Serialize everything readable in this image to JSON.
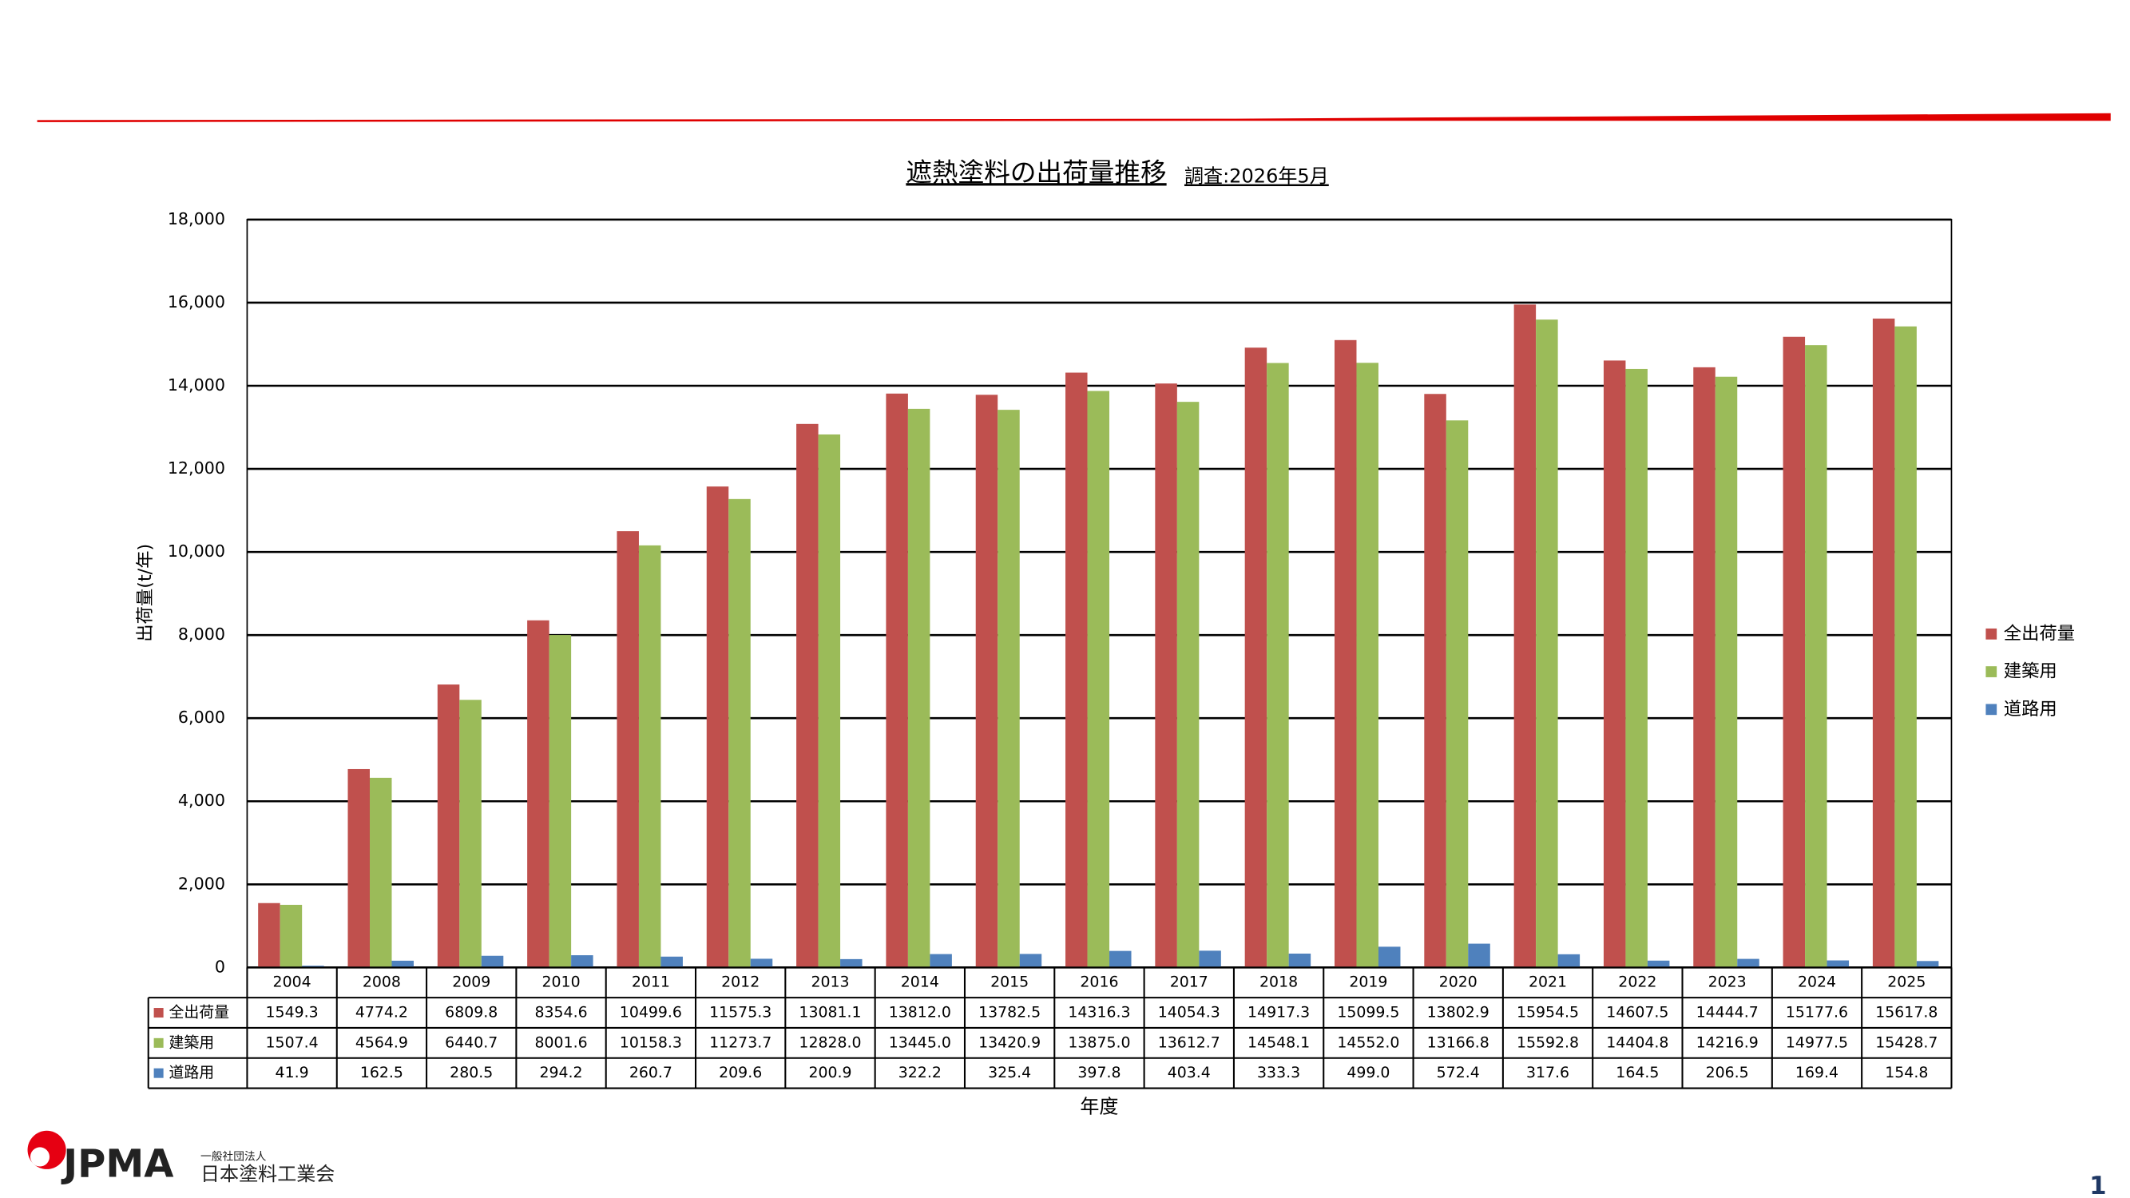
{
  "chart_data": {
    "type": "bar",
    "title": "遮熱塗料の出荷量推移",
    "subtitle": "調査:2026年5月",
    "y_label": "出荷量(t/年)",
    "x_label": "年度",
    "categories": [
      "2004",
      "2008",
      "2009",
      "2010",
      "2011",
      "2012",
      "2013",
      "2014",
      "2015",
      "2016",
      "2017",
      "2018",
      "2019",
      "2020",
      "2021",
      "2022",
      "2023",
      "2024",
      "2025"
    ],
    "series": [
      {
        "name": "全出荷量",
        "color": "#c0504d",
        "values": [
          1549.3,
          4774.2,
          6809.8,
          8354.6,
          10499.6,
          11575.3,
          13081.1,
          13812.0,
          13782.5,
          14316.3,
          14054.3,
          14917.3,
          15099.5,
          13802.9,
          15954.5,
          14607.5,
          14444.7,
          15177.6,
          15617.8
        ],
        "value_labels": [
          "1549.3",
          "4774.2",
          "6809.8",
          "8354.6",
          "10499.6",
          "11575.3",
          "13081.1",
          "13812.0",
          "13782.5",
          "14316.3",
          "14054.3",
          "14917.3",
          "15099.5",
          "13802.9",
          "15954.5",
          "14607.5",
          "14444.7",
          "15177.6",
          "15617.8"
        ]
      },
      {
        "name": "建築用",
        "color": "#9bbb59",
        "values": [
          1507.4,
          4564.9,
          6440.7,
          8001.6,
          10158.3,
          11273.7,
          12828.0,
          13445.0,
          13420.9,
          13875.0,
          13612.7,
          14548.1,
          14552.0,
          13166.8,
          15592.8,
          14404.8,
          14216.9,
          14977.5,
          15428.7
        ],
        "value_labels": [
          "1507.4",
          "4564.9",
          "6440.7",
          "8001.6",
          "10158.3",
          "11273.7",
          "12828.0",
          "13445.0",
          "13420.9",
          "13875.0",
          "13612.7",
          "14548.1",
          "14552.0",
          "13166.8",
          "15592.8",
          "14404.8",
          "14216.9",
          "14977.5",
          "15428.7"
        ]
      },
      {
        "name": "道路用",
        "color": "#4f81bd",
        "values": [
          41.9,
          162.5,
          280.5,
          294.2,
          260.7,
          209.6,
          200.9,
          322.2,
          325.4,
          397.8,
          403.4,
          333.3,
          499.0,
          572.4,
          317.6,
          164.5,
          206.5,
          169.4,
          154.8
        ],
        "value_labels": [
          "41.9",
          "162.5",
          "280.5",
          "294.2",
          "260.7",
          "209.6",
          "200.9",
          "322.2",
          "325.4",
          "397.8",
          "403.4",
          "333.3",
          "499.0",
          "572.4",
          "317.6",
          "164.5",
          "206.5",
          "169.4",
          "154.8"
        ]
      }
    ],
    "ylim": [
      0,
      18000
    ],
    "yticks": [
      0,
      {
        "value": 2000,
        "label": "2,000"
      },
      {
        "value": 4000,
        "label": "4,000"
      },
      {
        "value": 6000,
        "label": "6,000"
      },
      {
        "value": 8000,
        "label": "8,000"
      },
      {
        "value": 10000,
        "label": "10,000"
      },
      {
        "value": 12000,
        "label": "12,000"
      },
      {
        "value": 14000,
        "label": "14,000"
      },
      {
        "value": 16000,
        "label": "16,000"
      },
      {
        "value": 18000,
        "label": "18,000"
      }
    ],
    "grid": true,
    "legend": "right",
    "data_table": true
  },
  "footer": {
    "logo": "JPMA",
    "organization_type": "一般社団法人",
    "organization": "日本塗料工業会",
    "page_number": "1"
  }
}
